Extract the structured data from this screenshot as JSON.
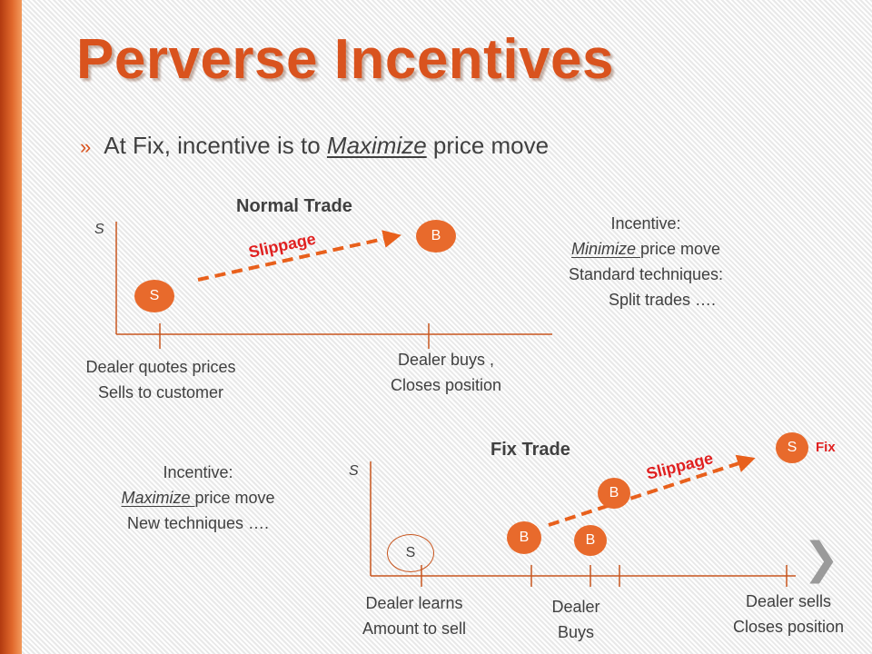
{
  "title": "Perverse Incentives",
  "bullet": {
    "mark": "»",
    "prefix": "At Fix, incentive is to ",
    "emphasis": "Maximize",
    "suffix": " price move"
  },
  "normal": {
    "heading": "Normal Trade",
    "axis": "S",
    "sell_marker": "S",
    "buy_marker": "B",
    "slippage": "Slippage",
    "label_left_1": "Dealer quotes prices",
    "label_left_2": "Sells to customer",
    "label_right_1": "Dealer buys ,",
    "label_right_2": "Closes position",
    "incentive_1": "Incentive:",
    "incentive_2_em": "Minimize ",
    "incentive_2_rest": "price move",
    "incentive_3": "Standard techniques:",
    "incentive_4": "Split trades …."
  },
  "fix": {
    "heading": "Fix Trade",
    "axis": "S",
    "start_marker": "S",
    "buy_marker_1": "B",
    "buy_marker_2": "B",
    "buy_marker_3": "B",
    "end_marker": "S",
    "fix_label": "Fix",
    "slippage": "Slippage",
    "incentive_1": "Incentive:",
    "incentive_2_em": "Maximize ",
    "incentive_2_rest": "price move",
    "incentive_3": "New techniques ….",
    "label_a_1": "Dealer  learns",
    "label_a_2": "Amount to sell",
    "label_b_1": "Dealer",
    "label_b_2": "Buys",
    "label_c_1": "Dealer sells",
    "label_c_2": "Closes position"
  },
  "nav": {
    "next_icon": "chevron-right-icon"
  },
  "colors": {
    "accent": "#d9531e",
    "marker": "#e86a2c",
    "slippage": "#e02020"
  }
}
